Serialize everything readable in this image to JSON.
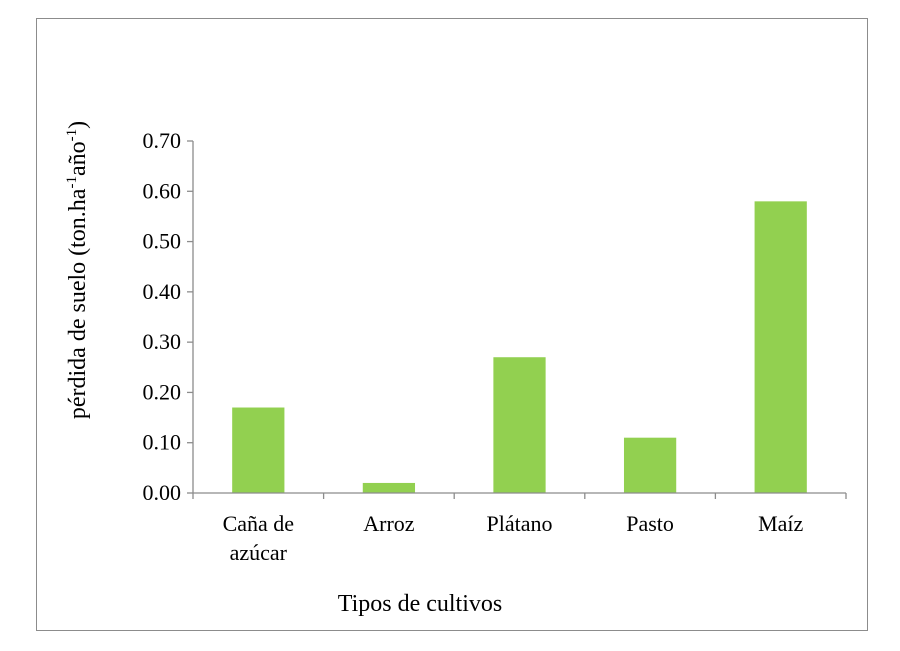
{
  "chart_data": {
    "type": "bar",
    "categories": [
      [
        "Caña de",
        "azúcar"
      ],
      [
        "Arroz"
      ],
      [
        "Plátano"
      ],
      [
        "Pasto"
      ],
      [
        "Maíz"
      ]
    ],
    "values": [
      0.17,
      0.02,
      0.27,
      0.11,
      0.58
    ],
    "xlabel": "Tipos de cultivos",
    "ylabel": {
      "parts": [
        "pérdida de suelo (ton.ha",
        "-1",
        "año",
        "-1",
        ")"
      ]
    },
    "ylim": [
      0,
      0.7
    ],
    "yticks": [
      "0.00",
      "0.10",
      "0.20",
      "0.30",
      "0.40",
      "0.50",
      "0.60",
      "0.70"
    ],
    "grid": false,
    "legend": "none",
    "colors": {
      "bar": "#92d050",
      "axis": "#8c8c8c",
      "frame": "#8c8c8c"
    }
  }
}
